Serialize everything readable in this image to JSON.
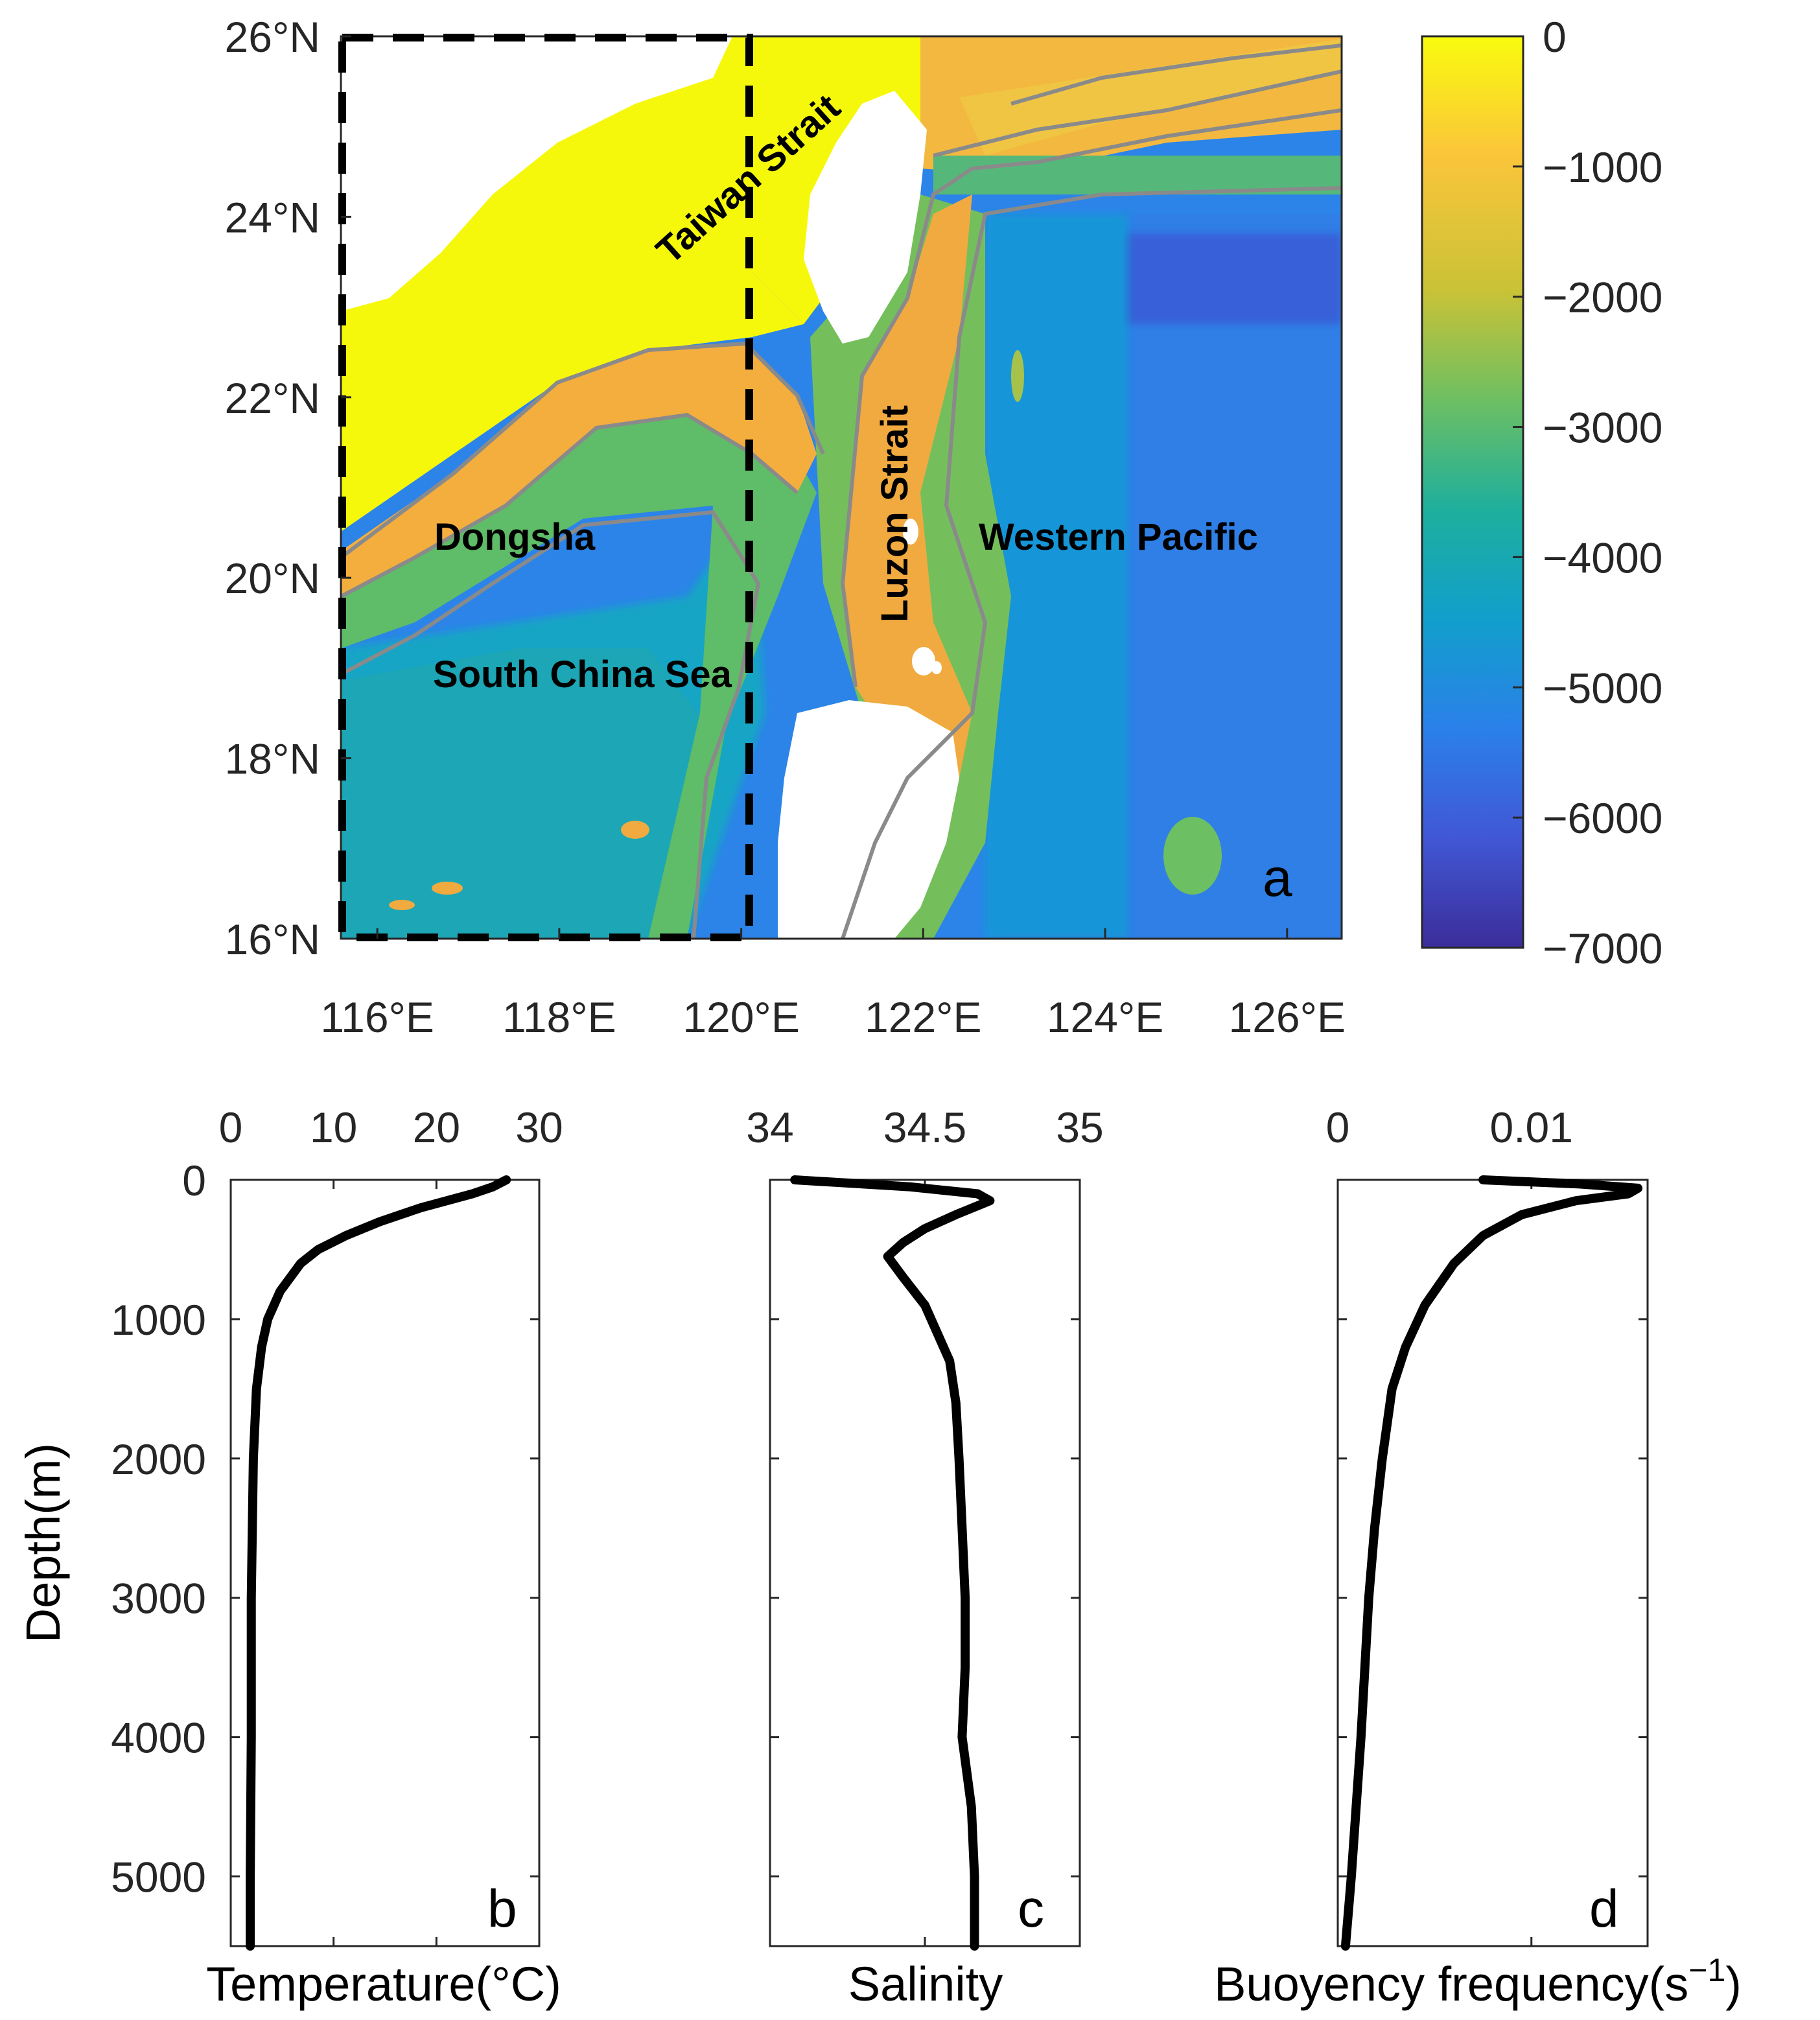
{
  "chart_data": [
    {
      "panel": "a",
      "type": "heatmap",
      "description_kind": "bathymetry map",
      "x_ticks": [
        "116°E",
        "118°E",
        "120°E",
        "122°E",
        "124°E",
        "126°E"
      ],
      "x_tick_values": [
        116,
        118,
        120,
        122,
        124,
        126
      ],
      "y_ticks": [
        "26°N",
        "24°N",
        "22°N",
        "20°N",
        "18°N",
        "16°N"
      ],
      "y_tick_values": [
        26,
        24,
        22,
        20,
        18,
        16
      ],
      "xlim": [
        115.6,
        126.6
      ],
      "ylim": [
        16,
        26
      ],
      "colorbar": {
        "ticks": [
          "0",
          "−1000",
          "−2000",
          "−3000",
          "−4000",
          "−5000",
          "−6000",
          "−7000"
        ],
        "tick_values": [
          0,
          -1000,
          -2000,
          -3000,
          -4000,
          -5000,
          -6000,
          -7000
        ],
        "range": [
          -7000,
          0
        ],
        "colors": [
          "#f9fb0e",
          "#fbb73c",
          "#c4c336",
          "#85bf5a",
          "#20b09a",
          "#10a1cc",
          "#2b7fe8",
          "#3f56d0",
          "#3b2d9a"
        ]
      },
      "region_labels": [
        "Taiwan Strait",
        "Luzon Strait",
        "Dongsha",
        "Western Pacific",
        "South China Sea"
      ],
      "study_box": {
        "lon": [
          115.6,
          120.1
        ],
        "lat": [
          16,
          26
        ]
      },
      "panel_label": "a"
    },
    {
      "panel": "b",
      "type": "line",
      "xlabel": "Temperature(°C)",
      "ylabel": "Depth(m)",
      "x_ticks": [
        "0",
        "10",
        "20",
        "30"
      ],
      "xlim": [
        0,
        30
      ],
      "ylim": [
        0,
        5500
      ],
      "y_ticks": [
        "0",
        "1000",
        "2000",
        "3000",
        "4000",
        "5000"
      ],
      "depth": [
        0,
        50,
        100,
        200,
        300,
        400,
        500,
        600,
        800,
        1000,
        1200,
        1500,
        2000,
        2500,
        3000,
        4000,
        5000,
        5500
      ],
      "values": [
        26.8,
        25.5,
        23.5,
        18.5,
        14.5,
        11.2,
        8.5,
        6.8,
        4.8,
        3.6,
        3.0,
        2.5,
        2.2,
        2.1,
        2.0,
        2.0,
        1.9,
        1.9
      ],
      "panel_label": "b"
    },
    {
      "panel": "c",
      "type": "line",
      "xlabel": "Salinity",
      "x_ticks": [
        "34",
        "34.5",
        "35"
      ],
      "xlim": [
        34,
        35
      ],
      "ylim": [
        0,
        5500
      ],
      "depth": [
        0,
        50,
        100,
        150,
        250,
        350,
        450,
        550,
        700,
        900,
        1100,
        1300,
        1600,
        2000,
        2500,
        3000,
        3500,
        4000,
        4500,
        5000,
        5500
      ],
      "values": [
        34.08,
        34.45,
        34.67,
        34.71,
        34.6,
        34.5,
        34.43,
        34.38,
        34.43,
        34.5,
        34.54,
        34.58,
        34.6,
        34.61,
        34.62,
        34.63,
        34.63,
        34.62,
        34.65,
        34.66,
        34.66
      ],
      "panel_label": "c"
    },
    {
      "panel": "d",
      "type": "line",
      "xlabel": "Buoyency frequency(s",
      "xlabel_sup": "−1",
      "xlabel_tail": ")",
      "x_ticks": [
        "0",
        "0.01"
      ],
      "x_tick_values": [
        0,
        0.01
      ],
      "xlim": [
        0,
        0.016
      ],
      "ylim": [
        0,
        5500
      ],
      "depth": [
        0,
        30,
        60,
        100,
        150,
        250,
        400,
        600,
        900,
        1200,
        1500,
        2000,
        2500,
        3000,
        4000,
        5000,
        5500
      ],
      "values": [
        0.0075,
        0.0125,
        0.0155,
        0.015,
        0.0123,
        0.0095,
        0.0075,
        0.006,
        0.0045,
        0.0035,
        0.0028,
        0.0023,
        0.0019,
        0.0016,
        0.0012,
        0.0007,
        0.0004
      ],
      "panel_label": "d"
    }
  ]
}
